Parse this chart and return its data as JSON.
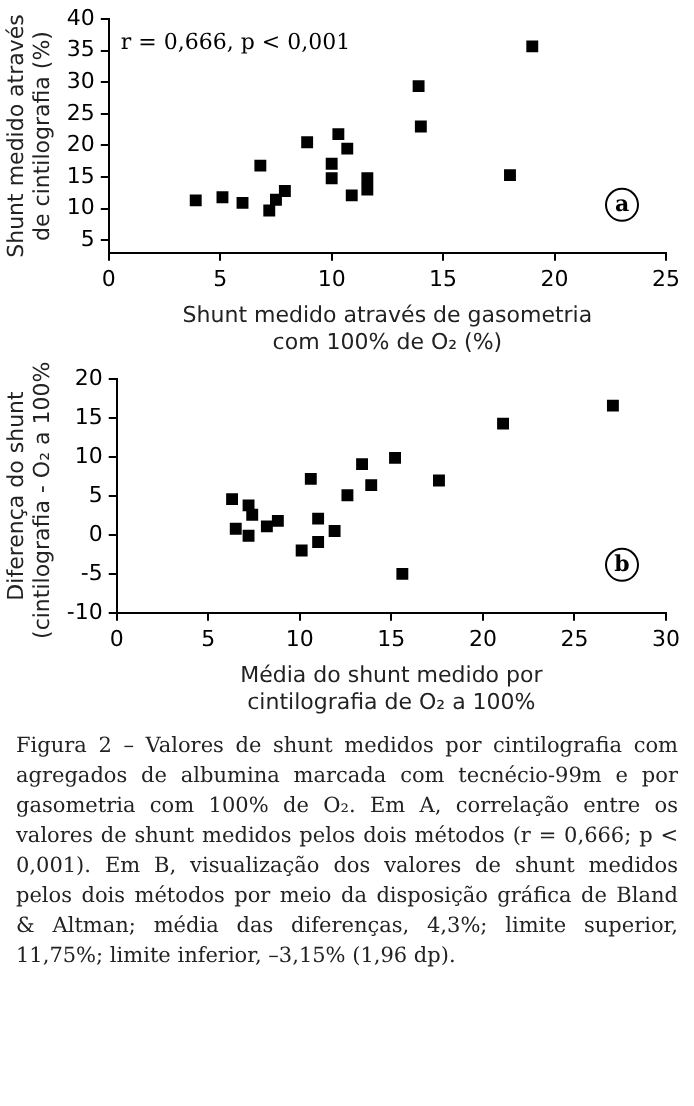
{
  "chart_data": [
    {
      "type": "scatter",
      "xlabel": "Shunt medido através de gasometria\ncom 100% de O₂ (%)",
      "ylabel": "Shunt medido através\nde cintilografia (%)",
      "annotations": [
        "r = 0,666, p < 0,001",
        "a"
      ],
      "marker": "square",
      "grid": false,
      "legend": false,
      "xlim": [
        0,
        25
      ],
      "xticks": [
        0,
        5,
        10,
        15,
        20,
        25
      ],
      "ylim": [
        3,
        40
      ],
      "yticks": [
        5,
        10,
        15,
        20,
        25,
        30,
        35,
        40
      ],
      "series": [
        {
          "color": "#000000",
          "x": [
            3.9,
            5.1,
            6.0,
            7.2,
            7.5,
            7.9,
            6.8,
            8.9,
            10.0,
            10.0,
            10.3,
            10.7,
            10.9,
            11.6,
            11.6,
            13.9,
            14.0,
            18.0,
            19.0
          ],
          "values": [
            11.3,
            11.8,
            10.9,
            9.7,
            11.4,
            12.8,
            16.8,
            20.5,
            14.8,
            17.1,
            21.8,
            19.5,
            12.1,
            14.8,
            13.0,
            29.4,
            23.0,
            15.3,
            35.7
          ]
        }
      ]
    },
    {
      "type": "scatter",
      "xlabel": "Média do shunt medido por\ncintilografia de O₂ a 100%",
      "ylabel": "Diferença do shunt\n(cintilografia - O₂ a 100%)",
      "annotations": [
        "b",
        "Figura 2 – Valores de shunt medidos por cintilografia com agregados de albumina marcada com tecnécio-99m e por gasometria com 100% de O₂. Em A, correlação entre os valores de shunt medidos pelos dois métodos (r = 0,666; p < 0,001). Em B, visualização dos valores de shunt medidos pelos dois métodos por meio da disposição gráfica de Bland & Altman; média das diferenças, 4,3%; limite superior, 11,75%; limite inferior, –3,15% (1,96 dp)."
      ],
      "marker": "square",
      "grid": false,
      "legend": false,
      "xlim": [
        0,
        30
      ],
      "xticks": [
        0,
        5,
        10,
        15,
        20,
        25,
        30
      ],
      "ylim": [
        -10,
        20
      ],
      "yticks": [
        -10,
        -5,
        0,
        5,
        10,
        15,
        20
      ],
      "series": [
        {
          "color": "#000000",
          "x": [
            6.3,
            6.5,
            7.2,
            7.2,
            7.4,
            8.2,
            8.8,
            10.1,
            10.6,
            11.0,
            11.0,
            11.9,
            12.6,
            13.4,
            13.9,
            15.2,
            15.6,
            17.6,
            21.1,
            27.1
          ],
          "values": [
            4.6,
            0.8,
            3.8,
            -0.1,
            2.6,
            1.1,
            1.8,
            -2.0,
            7.2,
            2.1,
            -0.9,
            0.5,
            5.1,
            9.1,
            6.4,
            9.9,
            -5.0,
            7.0,
            14.3,
            16.6
          ]
        }
      ]
    }
  ]
}
